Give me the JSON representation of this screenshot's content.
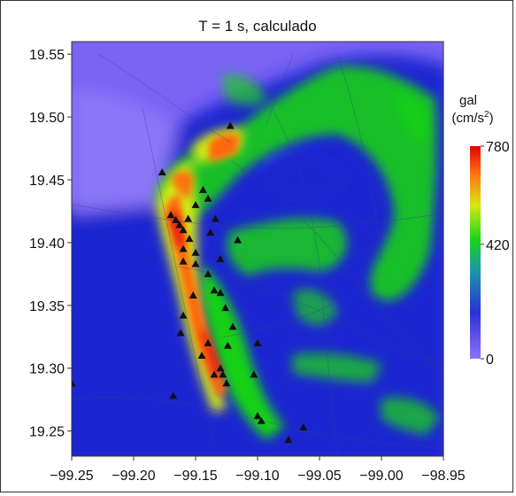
{
  "title": "T = 1 s, calculado",
  "colorbar": {
    "unit_top": "gal",
    "unit_bottom": "(cm/s",
    "unit_sup": "2",
    "unit_close": ")",
    "tick_labels": [
      "780",
      "420",
      "0"
    ],
    "ticks": [
      780,
      420,
      0
    ],
    "range": [
      0,
      780
    ],
    "colors": [
      "#7a63f5",
      "#1c2ad8",
      "#16d61a",
      "#d9e512",
      "#ff7a10",
      "#e40000"
    ]
  },
  "chart_data": {
    "type": "heatmap",
    "title": "T = 1 s, calculado",
    "xlabel": "",
    "ylabel": "",
    "xlim": [
      -99.25,
      -98.95
    ],
    "ylim": [
      19.23,
      19.56
    ],
    "x_ticks": [
      -99.25,
      -99.2,
      -99.15,
      -99.1,
      -99.05,
      -99.0,
      -98.95
    ],
    "x_tick_labels": [
      "−99.25",
      "−99.20",
      "−99.15",
      "−99.10",
      "−99.05",
      "−99.00",
      "−98.95"
    ],
    "y_ticks": [
      19.25,
      19.3,
      19.35,
      19.4,
      19.45,
      19.5,
      19.55
    ],
    "y_tick_labels": [
      "19.25",
      "19.30",
      "19.35",
      "19.40",
      "19.45",
      "19.50",
      "19.55"
    ],
    "stations": [
      [
        -99.122,
        19.493
      ],
      [
        -99.177,
        19.456
      ],
      [
        -99.144,
        19.442
      ],
      [
        -99.14,
        19.435
      ],
      [
        -99.15,
        19.43
      ],
      [
        -99.17,
        19.422
      ],
      [
        -99.166,
        19.418
      ],
      [
        -99.163,
        19.414
      ],
      [
        -99.156,
        19.419
      ],
      [
        -99.134,
        19.419
      ],
      [
        -99.16,
        19.41
      ],
      [
        -99.155,
        19.403
      ],
      [
        -99.138,
        19.408
      ],
      [
        -99.116,
        19.402
      ],
      [
        -99.16,
        19.395
      ],
      [
        -99.15,
        19.392
      ],
      [
        -99.16,
        19.385
      ],
      [
        -99.15,
        19.383
      ],
      [
        -99.13,
        19.387
      ],
      [
        -99.14,
        19.375
      ],
      [
        -99.135,
        19.362
      ],
      [
        -99.13,
        19.36
      ],
      [
        -99.152,
        19.358
      ],
      [
        -99.126,
        19.348
      ],
      [
        -99.12,
        19.333
      ],
      [
        -99.16,
        19.342
      ],
      [
        -99.162,
        19.328
      ],
      [
        -99.14,
        19.32
      ],
      [
        -99.124,
        19.318
      ],
      [
        -99.145,
        19.31
      ],
      [
        -99.13,
        19.3
      ],
      [
        -99.135,
        19.295
      ],
      [
        -99.128,
        19.295
      ],
      [
        -99.125,
        19.288
      ],
      [
        -99.103,
        19.295
      ],
      [
        -99.1,
        19.32
      ],
      [
        -99.168,
        19.278
      ],
      [
        -99.1,
        19.262
      ],
      [
        -99.097,
        19.258
      ],
      [
        -99.075,
        19.243
      ],
      [
        -99.25,
        19.288
      ],
      [
        -99.063,
        19.253
      ]
    ]
  }
}
